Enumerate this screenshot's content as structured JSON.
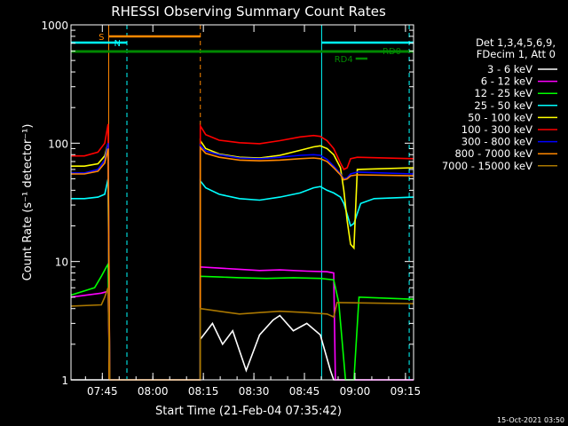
{
  "chart_data": {
    "type": "line",
    "title": "RHESSI Observing Summary Count Rates",
    "xlabel": "Start Time (21-Feb-04 07:35:42)",
    "ylabel": "Count Rate (s⁻¹ detector⁻¹)",
    "y_scale": "log",
    "ylim": [
      1,
      1000
    ],
    "xlim_minutes": [
      0,
      101.7
    ],
    "x_ticks": [
      {
        "label": "07:45",
        "min": 9.3
      },
      {
        "label": "08:00",
        "min": 24.3
      },
      {
        "label": "08:15",
        "min": 39.3
      },
      {
        "label": "08:30",
        "min": 54.3
      },
      {
        "label": "08:45",
        "min": 69.3
      },
      {
        "label": "09:00",
        "min": 84.3
      },
      {
        "label": "09:15",
        "min": 99.3
      }
    ],
    "y_ticks": [
      {
        "label": "1",
        "value": 1
      },
      {
        "label": "10",
        "value": 10
      },
      {
        "label": "100",
        "value": 100
      },
      {
        "label": "1000",
        "value": 1000
      }
    ],
    "legend_header": [
      "Det 1,3,4,5,6,9,",
      "FDecim 1, Att 0"
    ],
    "series": [
      {
        "name": "3 - 6 keV",
        "color": "#ffffff",
        "points": [
          [
            0,
            1
          ],
          [
            11.5,
            1
          ],
          [
            38.4,
            1
          ],
          [
            38.4,
            2.2
          ],
          [
            42,
            3
          ],
          [
            45,
            2
          ],
          [
            48,
            2.6
          ],
          [
            52,
            1.2
          ],
          [
            56,
            2.4
          ],
          [
            60,
            3.2
          ],
          [
            62,
            3.5
          ],
          [
            66,
            2.6
          ],
          [
            70,
            3
          ],
          [
            74,
            2.4
          ],
          [
            77,
            1.2
          ],
          [
            78,
            1
          ],
          [
            101.7,
            1
          ]
        ]
      },
      {
        "name": "6 - 12 keV",
        "color": "#ff00ff",
        "points": [
          [
            0,
            5
          ],
          [
            9,
            5.4
          ],
          [
            11,
            5.6
          ],
          [
            11.5,
            1
          ],
          [
            38.4,
            1
          ],
          [
            38.4,
            9
          ],
          [
            44,
            8.8
          ],
          [
            50,
            8.6
          ],
          [
            56,
            8.4
          ],
          [
            62,
            8.5
          ],
          [
            70,
            8.3
          ],
          [
            76,
            8.2
          ],
          [
            78,
            8
          ],
          [
            78.5,
            1
          ],
          [
            101.7,
            1
          ]
        ]
      },
      {
        "name": "12 - 25 keV",
        "color": "#00ff00",
        "points": [
          [
            0,
            5.2
          ],
          [
            7,
            6
          ],
          [
            9,
            7.5
          ],
          [
            10.5,
            9
          ],
          [
            11,
            9.5
          ],
          [
            11.5,
            1
          ],
          [
            38.4,
            1
          ],
          [
            38.4,
            7.5
          ],
          [
            44,
            7.4
          ],
          [
            50,
            7.3
          ],
          [
            58,
            7.2
          ],
          [
            66,
            7.3
          ],
          [
            74,
            7.2
          ],
          [
            78,
            7
          ],
          [
            79.5,
            4.5
          ],
          [
            81.5,
            1
          ],
          [
            84,
            1
          ],
          [
            85.5,
            5
          ],
          [
            101.7,
            4.8
          ]
        ]
      },
      {
        "name": "25 - 50 keV",
        "color": "#00ffff",
        "points": [
          [
            0,
            34
          ],
          [
            4,
            34
          ],
          [
            8,
            35
          ],
          [
            10,
            37
          ],
          [
            11,
            50
          ],
          [
            11.5,
            1
          ],
          [
            38.4,
            1
          ],
          [
            38.4,
            48
          ],
          [
            40,
            42
          ],
          [
            44,
            37
          ],
          [
            50,
            34
          ],
          [
            56,
            33
          ],
          [
            62,
            35
          ],
          [
            68,
            38
          ],
          [
            72,
            42
          ],
          [
            74,
            43
          ],
          [
            76,
            40
          ],
          [
            78,
            38
          ],
          [
            80,
            35
          ],
          [
            81,
            31
          ],
          [
            82,
            25
          ],
          [
            83,
            20
          ],
          [
            84,
            21
          ],
          [
            86,
            31
          ],
          [
            90,
            34
          ],
          [
            101.7,
            35
          ]
        ]
      },
      {
        "name": "50 - 100 keV",
        "color": "#ffff00",
        "points": [
          [
            0,
            64
          ],
          [
            4,
            64
          ],
          [
            8,
            67
          ],
          [
            10,
            78
          ],
          [
            11,
            100
          ],
          [
            11.5,
            1
          ],
          [
            38.4,
            1
          ],
          [
            38.4,
            105
          ],
          [
            40,
            90
          ],
          [
            44,
            81
          ],
          [
            50,
            76
          ],
          [
            56,
            75
          ],
          [
            62,
            79
          ],
          [
            68,
            87
          ],
          [
            72,
            93
          ],
          [
            74,
            95
          ],
          [
            76,
            90
          ],
          [
            78,
            80
          ],
          [
            80,
            62
          ],
          [
            81,
            40
          ],
          [
            82,
            22
          ],
          [
            83,
            14
          ],
          [
            84,
            13
          ],
          [
            85,
            60
          ],
          [
            101.7,
            62
          ]
        ]
      },
      {
        "name": "100 - 300 keV",
        "color": "#ff0000",
        "points": [
          [
            0,
            78
          ],
          [
            4,
            78
          ],
          [
            8,
            84
          ],
          [
            10,
            100
          ],
          [
            11,
            145
          ],
          [
            11.5,
            1
          ],
          [
            38.4,
            1
          ],
          [
            38.4,
            140
          ],
          [
            40,
            118
          ],
          [
            44,
            106
          ],
          [
            50,
            101
          ],
          [
            56,
            99
          ],
          [
            62,
            105
          ],
          [
            68,
            113
          ],
          [
            72,
            116
          ],
          [
            74,
            114
          ],
          [
            76,
            105
          ],
          [
            78,
            90
          ],
          [
            80,
            68
          ],
          [
            81,
            60
          ],
          [
            82,
            62
          ],
          [
            83,
            74
          ],
          [
            85,
            76
          ],
          [
            101.7,
            74
          ]
        ]
      },
      {
        "name": "300 - 800 keV",
        "color": "#0000ff",
        "points": [
          [
            0,
            56
          ],
          [
            4,
            56
          ],
          [
            8,
            60
          ],
          [
            10,
            72
          ],
          [
            11,
            100
          ],
          [
            11.5,
            1
          ],
          [
            38.4,
            1
          ],
          [
            38.4,
            96
          ],
          [
            40,
            86
          ],
          [
            44,
            80
          ],
          [
            50,
            75
          ],
          [
            56,
            74
          ],
          [
            62,
            76
          ],
          [
            68,
            79
          ],
          [
            72,
            80
          ],
          [
            74,
            79
          ],
          [
            76,
            73
          ],
          [
            78,
            64
          ],
          [
            80,
            55
          ],
          [
            81,
            50
          ],
          [
            82,
            51
          ],
          [
            83,
            55
          ],
          [
            85,
            57
          ],
          [
            101.7,
            55
          ]
        ]
      },
      {
        "name": "800 - 7000 keV",
        "color": "#ff8800",
        "points": [
          [
            0,
            55
          ],
          [
            4,
            55
          ],
          [
            8,
            58
          ],
          [
            10,
            68
          ],
          [
            11,
            90
          ],
          [
            11.5,
            1
          ],
          [
            38.4,
            1
          ],
          [
            38.4,
            92
          ],
          [
            40,
            82
          ],
          [
            44,
            76
          ],
          [
            50,
            72
          ],
          [
            56,
            71
          ],
          [
            62,
            72
          ],
          [
            68,
            74
          ],
          [
            72,
            75
          ],
          [
            74,
            74
          ],
          [
            76,
            70
          ],
          [
            78,
            62
          ],
          [
            80,
            54
          ],
          [
            81,
            49
          ],
          [
            82,
            50
          ],
          [
            83,
            53
          ],
          [
            85,
            54
          ],
          [
            101.7,
            53
          ]
        ]
      },
      {
        "name": "7000 - 15000 keV",
        "color": "#aa7700",
        "points": [
          [
            0,
            4.2
          ],
          [
            9,
            4.3
          ],
          [
            10,
            5
          ],
          [
            11,
            6
          ],
          [
            11.5,
            1
          ],
          [
            38.4,
            1
          ],
          [
            38.4,
            4
          ],
          [
            44,
            3.8
          ],
          [
            50,
            3.6
          ],
          [
            56,
            3.7
          ],
          [
            62,
            3.8
          ],
          [
            70,
            3.7
          ],
          [
            76,
            3.6
          ],
          [
            78,
            3.4
          ],
          [
            79,
            4.5
          ],
          [
            101.7,
            4.4
          ]
        ]
      }
    ],
    "bars": [
      {
        "label": "S",
        "color": "#ff8800",
        "from_min": 11.2,
        "to_min": 38.4,
        "level": "upper"
      },
      {
        "label": "N",
        "color": "#00ffff",
        "from_min": 0,
        "to_min": 16.6,
        "level": "middle"
      },
      {
        "label": "",
        "color": "#00ffff",
        "from_min": 74.4,
        "to_min": 101.7,
        "level": "middle"
      },
      {
        "label": "RD0",
        "color": "#008800",
        "from_min": 0,
        "to_min": 101.7,
        "level": "lower"
      },
      {
        "label": "RD4",
        "color": "#008800",
        "from_min": 84.5,
        "to_min": 88.0,
        "level": "below"
      }
    ],
    "vlines": [
      {
        "min": 11.2,
        "color": "#ff8800",
        "style": "solid"
      },
      {
        "min": 38.4,
        "color": "#ff8800",
        "style": "dashed"
      },
      {
        "min": 16.6,
        "color": "#00ffff",
        "style": "dashed"
      },
      {
        "min": 74.4,
        "color": "#00ffff",
        "style": "solid"
      },
      {
        "min": 100.4,
        "color": "#00ffff",
        "style": "dashed"
      }
    ],
    "timestamp": "15-Oct-2021 03:50"
  }
}
